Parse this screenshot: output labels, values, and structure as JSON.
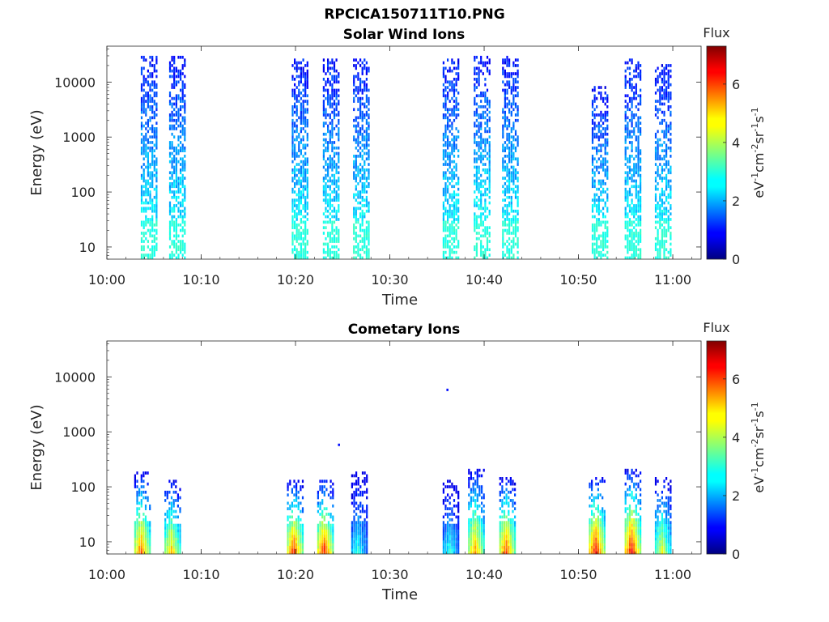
{
  "figure": {
    "title": "RPCICA150711T10.PNG"
  },
  "chart_data": [
    {
      "type": "heatmap",
      "title": "Solar Wind Ions",
      "xlabel": "Time",
      "ylabel": "Energy (eV)",
      "x_ticks": [
        "10:00",
        "10:10",
        "10:20",
        "10:30",
        "10:40",
        "10:50",
        "11:00"
      ],
      "y_ticks": [
        "10",
        "100",
        "1000",
        "10000"
      ],
      "y_scale": "log",
      "xlim": [
        "10:00",
        "11:03"
      ],
      "ylim": [
        6,
        45000
      ],
      "colorbar": {
        "title": "Flux",
        "label": "eV-1cm-2sr-1s-1",
        "ticks": [
          "0",
          "2",
          "4",
          "6"
        ],
        "range": [
          0,
          7.3
        ],
        "colormap": "jet"
      },
      "bursts": [
        {
          "time": "10:04.5",
          "max_energy": 30000,
          "flux_low": 3.0,
          "flux_high": 1.0
        },
        {
          "time": "10:07.5",
          "max_energy": 30000,
          "flux_low": 3.0,
          "flux_high": 1.0
        },
        {
          "time": "10:20.5",
          "max_energy": 25000,
          "flux_low": 3.0,
          "flux_high": 1.0
        },
        {
          "time": "10:23.8",
          "max_energy": 25000,
          "flux_low": 3.0,
          "flux_high": 1.0
        },
        {
          "time": "10:27.0",
          "max_energy": 25000,
          "flux_low": 3.0,
          "flux_high": 1.0
        },
        {
          "time": "10:36.5",
          "max_energy": 25000,
          "flux_low": 3.0,
          "flux_high": 1.0
        },
        {
          "time": "10:39.8",
          "max_energy": 30000,
          "flux_low": 3.2,
          "flux_high": 1.0
        },
        {
          "time": "10:42.8",
          "max_energy": 30000,
          "flux_low": 3.0,
          "flux_high": 1.0
        },
        {
          "time": "10:52.3",
          "max_energy": 8000,
          "flux_low": 3.0,
          "flux_high": 1.0
        },
        {
          "time": "10:55.8",
          "max_energy": 25000,
          "flux_low": 3.0,
          "flux_high": 1.0
        },
        {
          "time": "10:59.0",
          "max_energy": 20000,
          "flux_low": 3.0,
          "flux_high": 1.0
        }
      ]
    },
    {
      "type": "heatmap",
      "title": "Cometary Ions",
      "xlabel": "Time",
      "ylabel": "Energy (eV)",
      "x_ticks": [
        "10:00",
        "10:10",
        "10:20",
        "10:30",
        "10:40",
        "10:50",
        "11:00"
      ],
      "y_ticks": [
        "10",
        "100",
        "1000",
        "10000"
      ],
      "y_scale": "log",
      "xlim": [
        "10:00",
        "11:03"
      ],
      "ylim": [
        6,
        45000
      ],
      "colorbar": {
        "title": "Flux",
        "label": "eV-1cm-2sr-1s-1",
        "ticks": [
          "0",
          "2",
          "4",
          "6"
        ],
        "range": [
          0,
          7.3
        ],
        "colormap": "jet"
      },
      "bursts": [
        {
          "time": "10:03.8",
          "max_energy": 180,
          "peak_flux": 5.8
        },
        {
          "time": "10:07.0",
          "max_energy": 130,
          "peak_flux": 5.2
        },
        {
          "time": "10:20.0",
          "max_energy": 130,
          "peak_flux": 6.2
        },
        {
          "time": "10:23.2",
          "max_energy": 130,
          "peak_flux": 6.3
        },
        {
          "time": "10:26.8",
          "max_energy": 180,
          "peak_flux": 3.0
        },
        {
          "time": "10:36.5",
          "max_energy": 130,
          "peak_flux": 3.0
        },
        {
          "time": "10:39.2",
          "max_energy": 200,
          "peak_flux": 5.5
        },
        {
          "time": "10:42.5",
          "max_energy": 150,
          "peak_flux": 6.0
        },
        {
          "time": "10:52.0",
          "max_energy": 150,
          "peak_flux": 6.6
        },
        {
          "time": "10:55.8",
          "max_energy": 200,
          "peak_flux": 6.6
        },
        {
          "time": "10:59.0",
          "max_energy": 150,
          "peak_flux": 4.5
        }
      ],
      "isolated_points": [
        {
          "time": "10:36.0",
          "energy": 5800,
          "flux": 1.0
        },
        {
          "time": "10:24.5",
          "energy": 580,
          "flux": 1.0
        }
      ]
    }
  ]
}
